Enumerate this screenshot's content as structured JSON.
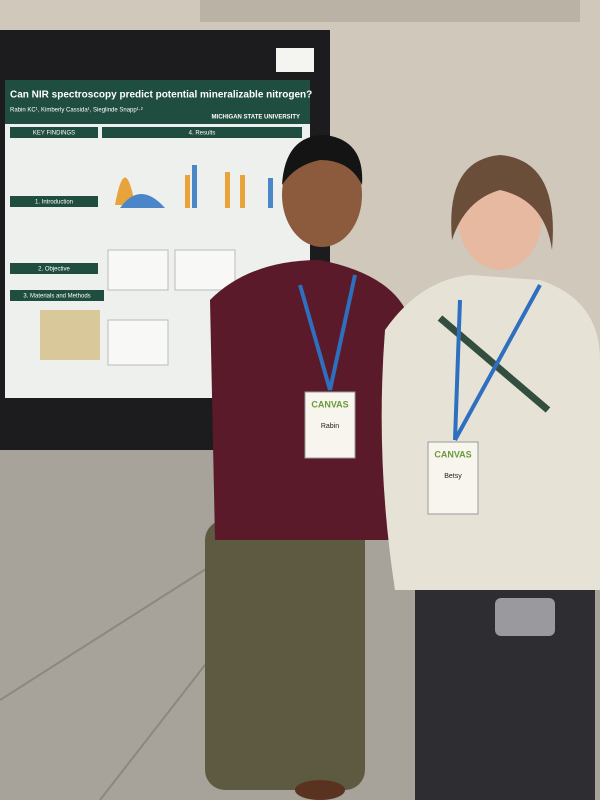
{
  "poster": {
    "title": "Can NIR spectroscopy predict potential mineralizable nitrogen?",
    "authors": "Rabin KC¹, Kimberly Cassida¹, Sieglinde Snapp¹·²",
    "affiliation": "MICHIGAN STATE UNIVERSITY",
    "sections": [
      "KEY FINDINGS",
      "1. Introduction",
      "2. Objective",
      "3. Materials and Methods",
      "4. Results"
    ]
  },
  "badges": [
    {
      "event": "CANVAS",
      "name": "Rabin"
    },
    {
      "event": "CANVAS",
      "name": "Betsy"
    }
  ]
}
